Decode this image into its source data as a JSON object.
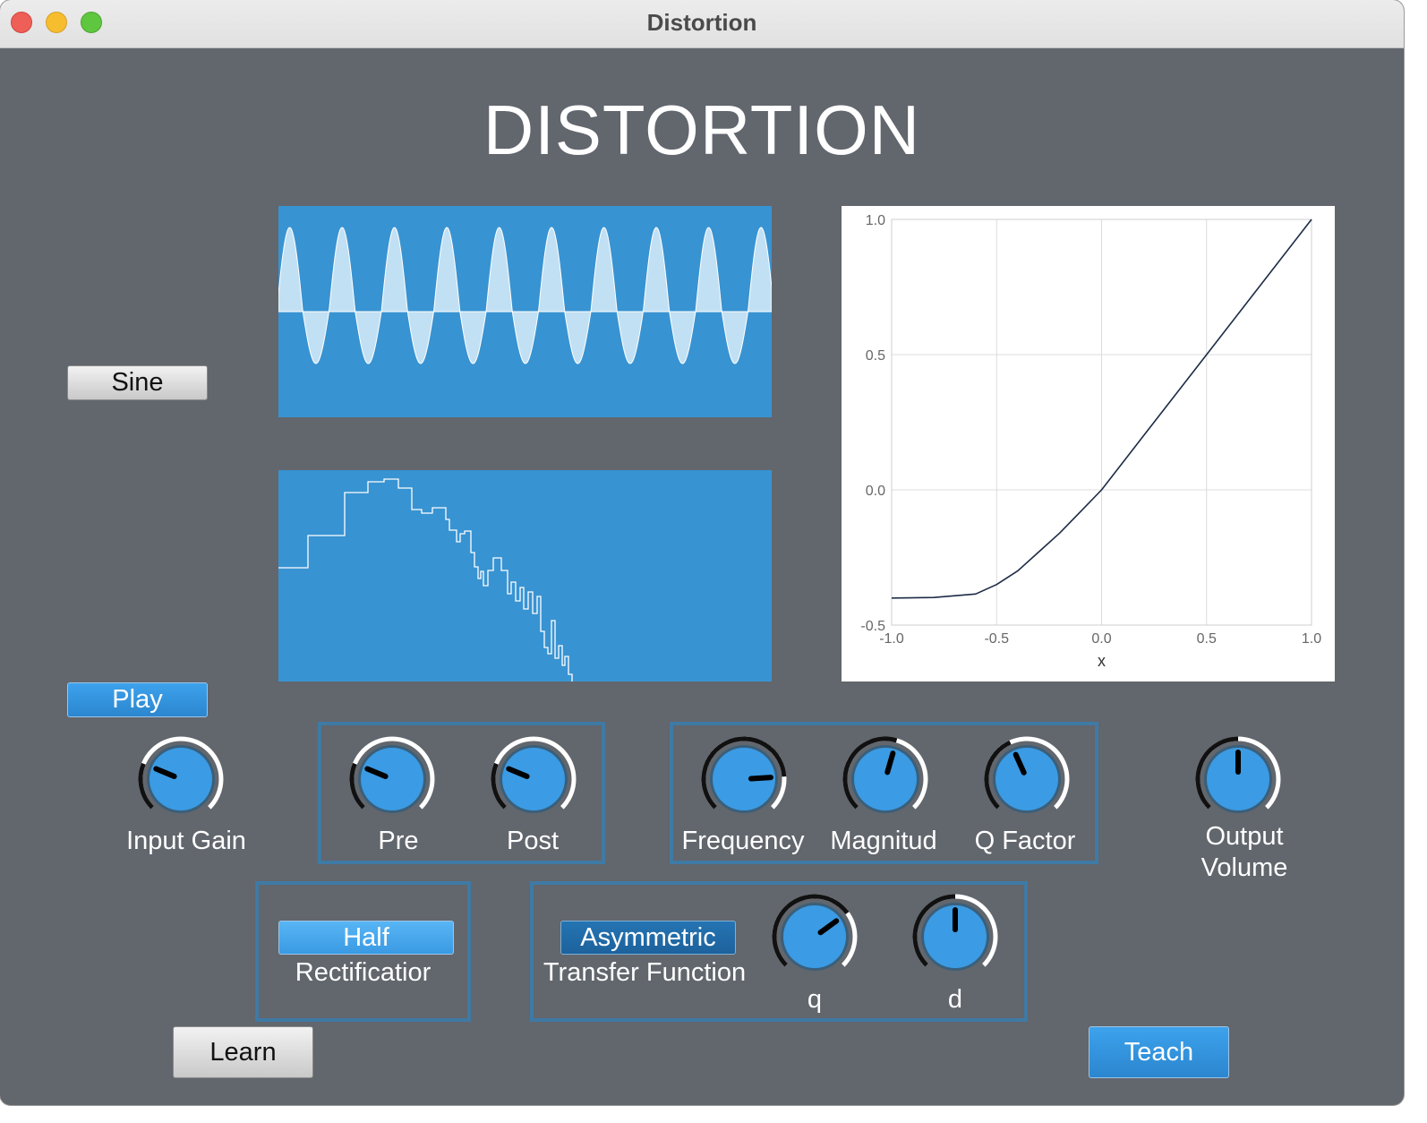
{
  "window": {
    "title": "Distortion"
  },
  "header": {
    "title": "DISTORTION"
  },
  "buttons": {
    "waveform": "Sine",
    "play": "Play",
    "learn": "Learn",
    "teach": "Teach",
    "rectification": "Half",
    "transfer": "Asymmetric"
  },
  "labels": {
    "rectification": "Rectificatior",
    "transfer": "Transfer Function"
  },
  "knobs": {
    "input_gain": {
      "label": "Input Gain",
      "value": 0.25
    },
    "pre": {
      "label": "Pre",
      "value": 0.25
    },
    "post": {
      "label": "Post",
      "value": 0.25
    },
    "frequency": {
      "label": "Frequency",
      "value": 0.82
    },
    "magnitude": {
      "label": "Magnitud",
      "value": 0.56
    },
    "q_factor": {
      "label": "Q Factor",
      "value": 0.41
    },
    "output_volume": {
      "label": "Output Volume",
      "line1": "Output",
      "line2": "Volume",
      "value": 0.5
    },
    "q": {
      "label": "q",
      "value": 0.7
    },
    "d": {
      "label": "d",
      "value": 0.5
    }
  },
  "colors": {
    "background": "#62666d",
    "panel": "#3893d2",
    "accent": "#2b86cf",
    "group_border": "#3f7aa5",
    "curve": "#1c2b45"
  },
  "chart_data": {
    "type": "line",
    "title": "",
    "xlabel": "x",
    "ylabel": "",
    "xlim": [
      -1.0,
      1.0
    ],
    "ylim": [
      -0.5,
      1.0
    ],
    "x_ticks": [
      "-1.0",
      "-0.5",
      "0.0",
      "0.5",
      "1.0"
    ],
    "y_ticks": [
      "1.0",
      "0.5",
      "0.0",
      "-0.5"
    ],
    "grid": true,
    "series": [
      {
        "x": [
          -1.0,
          -0.8,
          -0.6,
          -0.5,
          -0.4,
          -0.3,
          -0.2,
          -0.1,
          0.0,
          0.25,
          0.5,
          0.75,
          1.0
        ],
        "y": [
          -0.4,
          -0.398,
          -0.385,
          -0.35,
          -0.3,
          -0.23,
          -0.16,
          -0.08,
          0.0,
          0.25,
          0.5,
          0.75,
          1.0
        ]
      }
    ]
  }
}
